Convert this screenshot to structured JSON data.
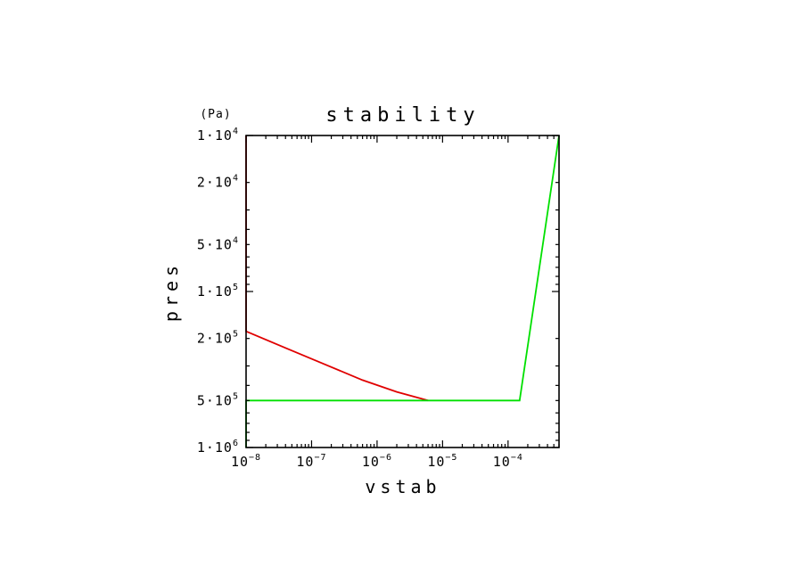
{
  "chart_data": {
    "type": "line",
    "title": "stability",
    "xlabel": "vstab",
    "ylabel": "pres",
    "y_unit": "(Pa)",
    "x_scale": "log",
    "y_scale": "log",
    "y_inverted": true,
    "xlim": [
      1e-08,
      0.0006
    ],
    "ylim": [
      1000000,
      10000
    ],
    "grid": false,
    "x_ticks": [
      {
        "value": 1e-08,
        "base": "10",
        "exp": "−8"
      },
      {
        "value": 1e-07,
        "base": "10",
        "exp": "−7"
      },
      {
        "value": 1e-06,
        "base": "10",
        "exp": "−6"
      },
      {
        "value": 1e-05,
        "base": "10",
        "exp": "−5"
      },
      {
        "value": 0.0001,
        "base": "10",
        "exp": "−4"
      }
    ],
    "y_ticks": [
      {
        "value": 10000,
        "text": "1·10",
        "exp": "4"
      },
      {
        "value": 20000,
        "text": "2·10",
        "exp": "4"
      },
      {
        "value": 50000,
        "text": "5·10",
        "exp": "4"
      },
      {
        "value": 100000,
        "text": "1·10",
        "exp": "5"
      },
      {
        "value": 200000,
        "text": "2·10",
        "exp": "5"
      },
      {
        "value": 500000,
        "text": "5·10",
        "exp": "5"
      },
      {
        "value": 1000000,
        "text": "1·10",
        "exp": "6"
      }
    ],
    "series": [
      {
        "color": "#e00000",
        "points": [
          [
            1e-08,
            10000
          ],
          [
            1e-08,
            180000
          ],
          [
            4e-08,
            230000
          ],
          [
            1.5e-07,
            290000
          ],
          [
            6e-07,
            370000
          ],
          [
            2e-06,
            440000
          ],
          [
            6e-06,
            500000
          ]
        ]
      },
      {
        "color": "#00e000",
        "points": [
          [
            1e-08,
            1000000
          ],
          [
            1e-08,
            500000
          ],
          [
            0.00015,
            500000
          ],
          [
            0.0006,
            10000
          ]
        ]
      }
    ]
  }
}
